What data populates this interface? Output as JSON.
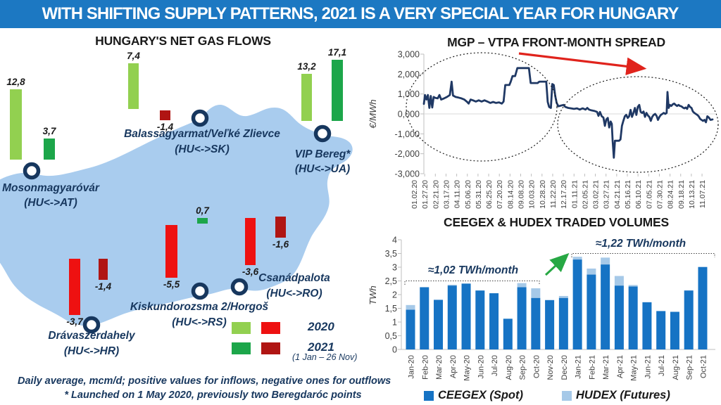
{
  "banner": {
    "title": "WITH SHIFTING SUPPLY PATTERNS, 2021 IS A VERY SPECIAL YEAR FOR HUNGARY"
  },
  "map_panel": {
    "title": "HUNGARY'S NET GAS FLOWS",
    "points": [
      {
        "name": "Mosonmagyaróvár",
        "route": "(HU<->AT)"
      },
      {
        "name": "Balassagyarmat/Veľké Zlievce",
        "route": "(HU<->SK)"
      },
      {
        "name": "VIP Bereg*",
        "route": "(HU<->UA)"
      },
      {
        "name": "Csanádpalota",
        "route": "(HU<->RO)"
      },
      {
        "name": "Kiskundorozsma 2/Horgoš",
        "route": "(HU<->RS)"
      },
      {
        "name": "Drávaszerdahely",
        "route": "(HU<->HR)"
      }
    ],
    "legend": {
      "label_2020": "2020",
      "label_2021": "2021",
      "period_note": "(1 Jan – 26 Nov)"
    },
    "footnote_line1": "Daily average, mcm/d; positive values for inflows, negative ones for outflows",
    "footnote_line2": "* Launched on 1 May 2020, previously two Beregdaróc points"
  },
  "spread_chart": {
    "title": "MGP – VTPA FRONT-MONTH SPREAD"
  },
  "volumes_chart": {
    "title": "CEEGEX & HUDEX TRADED VOLUMES",
    "legend": {
      "spot": "CEEGEX (Spot)",
      "futures": "HUDEX (Futures)"
    }
  },
  "colors": {
    "banner_blue": "#1C78C2",
    "map_fill": "#A9CCEE",
    "green_2020": "#92D050",
    "green_2021": "#1CA64A",
    "red_2020": "#EE1111",
    "red_2021": "#B01513",
    "navy_text": "#17375E",
    "line_navy": "#1F3864",
    "spot_blue": "#1673C4",
    "futures_blue": "#A6C9E8",
    "arrow_red": "#E0231C",
    "arrow_green": "#27A844",
    "axis_gray": "#BFBFBF",
    "tick_text": "#3F3F3F"
  },
  "chart_data": [
    {
      "type": "bar",
      "subtype": "map-flows",
      "title": "HUNGARY'S NET GAS FLOWS",
      "unit": "mcm/d",
      "note": "Daily average, mcm/d; positive values for inflows, negative ones for outflows",
      "categories": [
        "Mosonmagyaróvár (HU<->AT)",
        "Balassagyarmat/Veľké Zlievce (HU<->SK)",
        "VIP Bereg* (HU<->UA)",
        "Csanádpalota (HU<->RO)",
        "Kiskundorozsma 2/Horgoš (HU<->RS)",
        "Drávaszerdahely (HU<->HR)"
      ],
      "series": [
        {
          "name": "2020",
          "values": [
            12.8,
            7.4,
            13.2,
            -3.6,
            -5.5,
            -3.7
          ]
        },
        {
          "name": "2021 (1 Jan – 26 Nov)",
          "values": [
            3.7,
            -1.4,
            17.1,
            -1.6,
            0.7,
            -1.4
          ]
        }
      ]
    },
    {
      "type": "line",
      "title": "MGP – VTPA FRONT-MONTH SPREAD",
      "ylabel": "€/MWh",
      "ylim": [
        -3,
        3
      ],
      "y_tick_labels": [
        "3,000",
        "2,000",
        "1,000",
        "0,000",
        "-1,000",
        "-2,000",
        "-3,000"
      ],
      "x_tick_labels": [
        "01.02.20",
        "01.27.20",
        "02.21.20",
        "03.17.20",
        "04.11.20",
        "05.06.20",
        "05.31.20",
        "06.25.20",
        "07.20.20",
        "08.14.20",
        "09.08.20",
        "10.03.20",
        "10.28.20",
        "11.22.20",
        "12.17.20",
        "01.11.21",
        "02.05.21",
        "03.02.21",
        "03.27.21",
        "04.21.21",
        "05.16.21",
        "06.10.21",
        "07.05.21",
        "07.30.21",
        "08.24.21",
        "09.18.21",
        "10.13.21",
        "11.07.21"
      ],
      "points": [
        [
          0,
          0.5
        ],
        [
          0.4,
          0.95
        ],
        [
          0.9,
          0.72
        ],
        [
          1.4,
          0.95
        ],
        [
          1.9,
          0.3
        ],
        [
          2.4,
          0.9
        ],
        [
          2.9,
          0.32
        ],
        [
          3.4,
          0.85
        ],
        [
          4,
          0.8
        ],
        [
          4.8,
          0.78
        ],
        [
          5.4,
          0.95
        ],
        [
          6,
          0.72
        ],
        [
          7,
          0.78
        ],
        [
          8,
          0.85
        ],
        [
          9,
          0.95
        ],
        [
          9.6,
          1.62
        ],
        [
          10.1,
          0.92
        ],
        [
          11,
          0.85
        ],
        [
          12,
          0.82
        ],
        [
          13,
          0.78
        ],
        [
          14,
          0.72
        ],
        [
          15,
          0.6
        ],
        [
          15.5,
          0.52
        ],
        [
          16.2,
          0.72
        ],
        [
          17,
          0.68
        ],
        [
          18,
          0.62
        ],
        [
          19,
          0.68
        ],
        [
          20,
          0.62
        ],
        [
          21,
          0.68
        ],
        [
          22,
          0.62
        ],
        [
          23,
          0.55
        ],
        [
          24,
          0.6
        ],
        [
          25,
          0.55
        ],
        [
          26,
          0.58
        ],
        [
          27,
          0.52
        ],
        [
          27.6,
          0.62
        ],
        [
          28.2,
          1.45
        ],
        [
          29.6,
          1.45
        ],
        [
          30.1,
          1.62
        ],
        [
          30.7,
          1.9
        ],
        [
          31.6,
          1.9
        ],
        [
          32.4,
          2.3
        ],
        [
          36.4,
          2.3
        ],
        [
          37,
          1.55
        ],
        [
          39.4,
          1.55
        ],
        [
          40,
          1.62
        ],
        [
          42.4,
          1.62
        ],
        [
          42.9,
          0.6
        ],
        [
          43.4,
          0.35
        ],
        [
          44,
          0.3
        ],
        [
          44.5,
          1.5
        ],
        [
          45,
          1.45
        ],
        [
          45.5,
          0.9
        ],
        [
          46,
          0.55
        ],
        [
          46.6,
          0.38
        ],
        [
          47.5,
          0.42
        ],
        [
          48.4,
          0.45
        ],
        [
          49,
          0.35
        ],
        [
          50,
          0.3
        ],
        [
          51,
          0.28
        ],
        [
          52,
          0.25
        ],
        [
          53,
          0.28
        ],
        [
          54,
          0.22
        ],
        [
          55,
          0.28
        ],
        [
          56,
          0.22
        ],
        [
          56.6,
          0.3
        ],
        [
          57.2,
          0.22
        ],
        [
          58,
          0.18
        ],
        [
          59,
          0.15
        ],
        [
          60,
          0.1
        ],
        [
          60.5,
          -0.1
        ],
        [
          61,
          0.1
        ],
        [
          61.6,
          -0.12
        ],
        [
          62.2,
          -0.18
        ],
        [
          62.7,
          -0.6
        ],
        [
          63.2,
          -0.28
        ],
        [
          63.7,
          -0.2
        ],
        [
          64.2,
          -0.68
        ],
        [
          64.7,
          -0.38
        ],
        [
          65.1,
          -0.5
        ],
        [
          65.4,
          -1.35
        ],
        [
          65.8,
          -2.2
        ],
        [
          66.2,
          -1.35
        ],
        [
          67.6,
          -1.35
        ],
        [
          68.1,
          -1.28
        ],
        [
          68.6,
          -0.6
        ],
        [
          69.1,
          -0.35
        ],
        [
          69.6,
          -0.12
        ],
        [
          70.1,
          -0.05
        ],
        [
          70.6,
          -0.2
        ],
        [
          71.1,
          -0.12
        ],
        [
          71.6,
          0.2
        ],
        [
          72.1,
          -0.15
        ],
        [
          72.6,
          0.05
        ],
        [
          73.1,
          0.3
        ],
        [
          73.6,
          -0.05
        ],
        [
          74.1,
          0.35
        ],
        [
          74.6,
          0.45
        ],
        [
          75.1,
          0.1
        ],
        [
          75.6,
          0.05
        ],
        [
          76.1,
          0.12
        ],
        [
          76.6,
          -0.15
        ],
        [
          77.1,
          0.05
        ],
        [
          77.6,
          -0.08
        ],
        [
          78.1,
          -0.15
        ],
        [
          78.6,
          -0.35
        ],
        [
          79.1,
          -0.15
        ],
        [
          79.6,
          -0.05
        ],
        [
          80.1,
          0
        ],
        [
          80.6,
          -0.1
        ],
        [
          81.1,
          -0.3
        ],
        [
          81.6,
          -0.15
        ],
        [
          82.1,
          -0.05
        ],
        [
          82.6,
          0
        ],
        [
          83.1,
          0.05
        ],
        [
          83.6,
          0
        ],
        [
          84.1,
          0.05
        ],
        [
          84.4,
          1.1
        ],
        [
          84.8,
          0.3
        ],
        [
          85.2,
          0.45
        ],
        [
          85.7,
          0.4
        ],
        [
          86.2,
          0.48
        ],
        [
          86.7,
          0.52
        ],
        [
          87.2,
          0.45
        ],
        [
          87.7,
          0.4
        ],
        [
          88.2,
          0.45
        ],
        [
          88.7,
          0.4
        ],
        [
          89.2,
          0.38
        ],
        [
          89.7,
          0.32
        ],
        [
          90.2,
          0.28
        ],
        [
          90.7,
          0.32
        ],
        [
          91.2,
          0.25
        ],
        [
          91.7,
          0.45
        ],
        [
          92.2,
          0.35
        ],
        [
          92.7,
          0.3
        ],
        [
          93.2,
          0.12
        ],
        [
          93.7,
          0.05
        ],
        [
          94.2,
          0
        ],
        [
          94.7,
          -0.05
        ],
        [
          95.2,
          -0.12
        ],
        [
          95.7,
          -0.25
        ],
        [
          96.2,
          -0.3
        ],
        [
          96.7,
          -0.35
        ],
        [
          97.2,
          -0.3
        ],
        [
          97.7,
          -0.42
        ],
        [
          98.2,
          -0.12
        ],
        [
          98.7,
          -0.18
        ],
        [
          99.3,
          -0.3
        ],
        [
          100,
          -0.28
        ]
      ]
    },
    {
      "type": "bar",
      "stacked": true,
      "title": "CEEGEX & HUDEX TRADED VOLUMES",
      "ylabel": "TWh",
      "ylim": [
        0,
        4
      ],
      "y_tick_labels": [
        "0",
        "0,5",
        "1",
        "1,5",
        "2",
        "2,5",
        "3",
        "3,5",
        "4"
      ],
      "categories": [
        "Jan-20",
        "Feb-20",
        "Mar-20",
        "Apr-20",
        "May-20",
        "Jun-20",
        "Jul-20",
        "Aug-20",
        "Sep-20",
        "Oct-20",
        "Nov-20",
        "Dec-20",
        "Jan-21",
        "Feb-21",
        "Mar-21",
        "Apr-21",
        "May-21",
        "Jun-21",
        "Jul-21",
        "Aug-21",
        "Sep-21",
        "Oct-21"
      ],
      "series": [
        {
          "name": "CEEGEX (Spot)",
          "values": [
            1.45,
            2.27,
            1.81,
            2.33,
            2.4,
            2.15,
            2.05,
            1.12,
            2.27,
            1.88,
            1.8,
            1.88,
            3.28,
            2.73,
            3.1,
            2.33,
            2.3,
            1.72,
            1.4,
            1.37,
            2.15,
            3.0
          ]
        },
        {
          "name": "HUDEX (Futures)",
          "values": [
            0.17,
            0,
            0,
            0.03,
            0.01,
            0,
            0,
            0,
            0.15,
            0.35,
            0.01,
            0.07,
            0.1,
            0.22,
            0.25,
            0.35,
            0.05,
            0.01,
            0,
            0.01,
            0.01,
            0.02
          ]
        }
      ],
      "annotations": [
        "≈1,02 TWh/month",
        "≈1,22 TWh/month"
      ]
    }
  ]
}
